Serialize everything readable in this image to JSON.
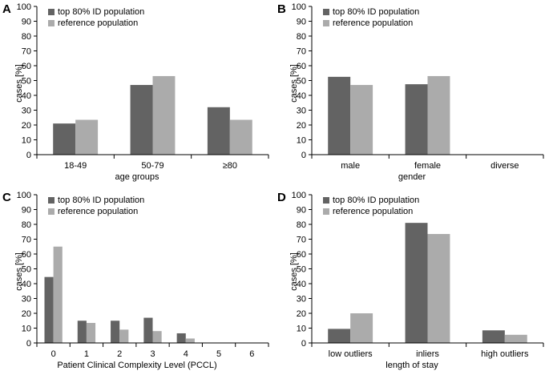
{
  "colors": {
    "top80": "#636363",
    "reference": "#ababab",
    "axis": "#000000"
  },
  "chart_data": [
    {
      "panel": "A",
      "type": "bar",
      "categories": [
        "18-49",
        "50-79",
        "≥80"
      ],
      "series": [
        {
          "name": "top 80% ID population",
          "values": [
            21,
            47,
            32
          ]
        },
        {
          "name": "reference population",
          "values": [
            23.5,
            53,
            23.5
          ]
        }
      ],
      "xlabel": "age groups",
      "ylabel": "cases [%]",
      "ylim": [
        0,
        100
      ],
      "yticks": [
        "0",
        "10",
        "20",
        "30",
        "40",
        "50",
        "60",
        "70",
        "80",
        "90",
        "100"
      ],
      "legend": "top-left"
    },
    {
      "panel": "B",
      "type": "bar",
      "categories": [
        "male",
        "female",
        "diverse"
      ],
      "series": [
        {
          "name": "top 80% ID population",
          "values": [
            52.5,
            47.5,
            0
          ]
        },
        {
          "name": "reference population",
          "values": [
            47,
            53,
            0
          ]
        }
      ],
      "xlabel": "gender",
      "ylabel": "cases [%]",
      "ylim": [
        0,
        100
      ],
      "yticks": [
        "0",
        "10",
        "20",
        "30",
        "40",
        "50",
        "60",
        "70",
        "80",
        "90",
        "100"
      ],
      "legend": "top-left"
    },
    {
      "panel": "C",
      "type": "bar",
      "categories": [
        "0",
        "1",
        "2",
        "3",
        "4",
        "5",
        "6"
      ],
      "series": [
        {
          "name": "top 80% ID population",
          "values": [
            44.5,
            15,
            15,
            17,
            6.5,
            0,
            0
          ]
        },
        {
          "name": "reference population",
          "values": [
            65,
            13.5,
            9,
            8,
            3,
            0,
            0
          ]
        }
      ],
      "xlabel": "Patient Clinical Complexity Level (PCCL)",
      "ylabel": "cases [%]",
      "ylim": [
        0,
        100
      ],
      "yticks": [
        "0",
        "10",
        "20",
        "30",
        "40",
        "50",
        "60",
        "70",
        "80",
        "90",
        "100"
      ],
      "legend": "top-left"
    },
    {
      "panel": "D",
      "type": "bar",
      "categories": [
        "low outliers",
        "inliers",
        "high outliers"
      ],
      "series": [
        {
          "name": "top 80% ID population",
          "values": [
            9.5,
            81,
            8.5
          ]
        },
        {
          "name": "reference population",
          "values": [
            20,
            73.5,
            5.5
          ]
        }
      ],
      "xlabel": "length of stay",
      "ylabel": "cases [%]",
      "ylim": [
        0,
        100
      ],
      "yticks": [
        "0",
        "10",
        "20",
        "30",
        "40",
        "50",
        "60",
        "70",
        "80",
        "90",
        "100"
      ],
      "legend": "top-left"
    }
  ]
}
